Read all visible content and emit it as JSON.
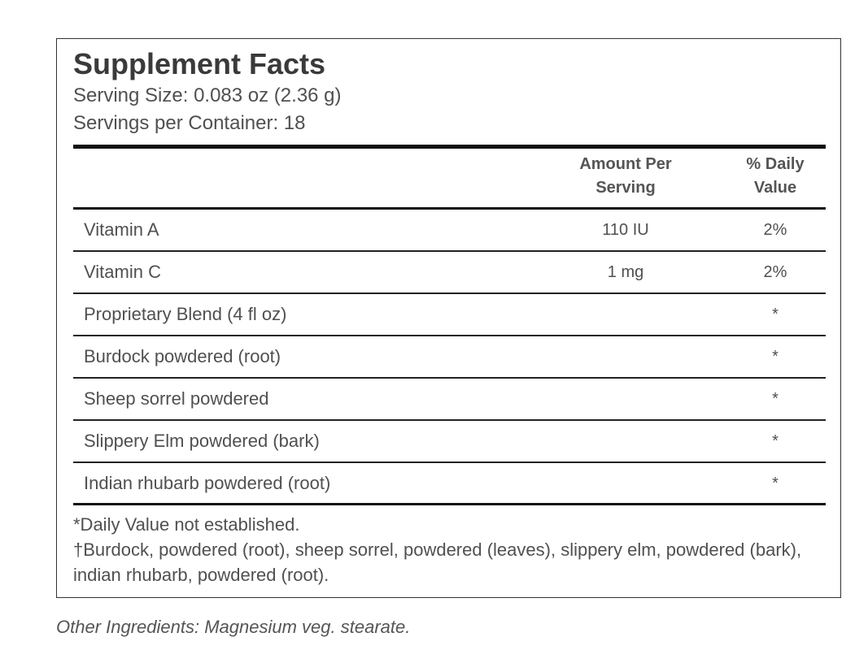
{
  "header": {
    "title": "Supplement Facts",
    "serving_size": "Serving Size: 0.083 oz (2.36 g)",
    "servings_per_container": "Servings per Container: 18"
  },
  "table": {
    "columns": [
      "Amount Per Serving",
      "% Daily Value"
    ],
    "rows": [
      {
        "name": "Vitamin A",
        "amount": "110 IU",
        "daily_value": "2%"
      },
      {
        "name": "Vitamin C",
        "amount": "1 mg",
        "daily_value": "2%"
      },
      {
        "name": "Proprietary Blend (4 fl oz)",
        "daily_value": "*"
      },
      {
        "name": "Burdock powdered (root)",
        "daily_value": "*"
      },
      {
        "name": "Sheep sorrel powdered",
        "daily_value": "*"
      },
      {
        "name": "Slippery Elm powdered (bark)",
        "daily_value": "*"
      },
      {
        "name": "Indian rhubarb powdered (root)",
        "daily_value": "*"
      }
    ]
  },
  "footnotes": [
    "*Daily Value not established.",
    "†Burdock, powdered (root), sheep sorrel, powdered (leaves), slippery elm, powdered (bark), indian rhubarb, powdered (root)."
  ],
  "other_ingredients": "Other Ingredients: Magnesium veg. stearate."
}
